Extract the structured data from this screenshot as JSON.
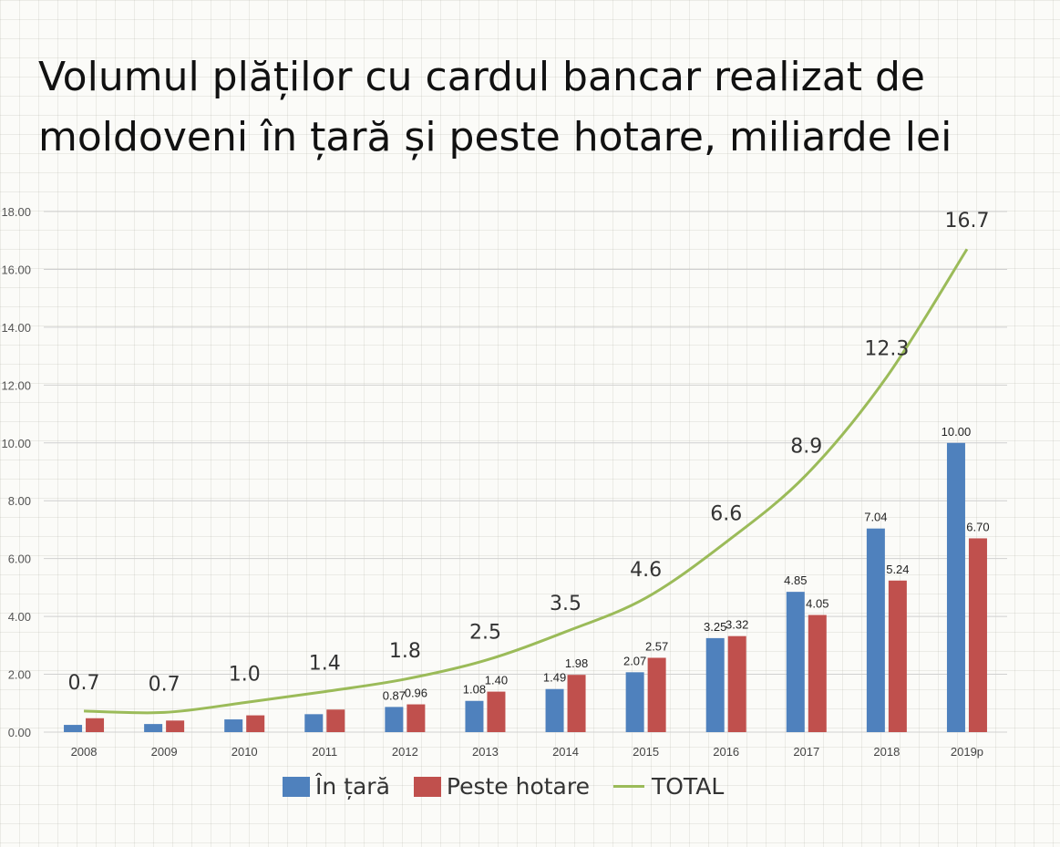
{
  "title": "Volumul plăților cu cardul bancar realizat de moldoveni în țară și peste hotare, miliarde lei",
  "chart_data": {
    "type": "bar",
    "categories": [
      "2008",
      "2009",
      "2010",
      "2011",
      "2012",
      "2013",
      "2014",
      "2015",
      "2016",
      "2017",
      "2018",
      "2019p"
    ],
    "series": [
      {
        "name": "În țară",
        "type": "bar",
        "color": "#4f81bd",
        "values": [
          0.25,
          0.28,
          0.44,
          0.62,
          0.87,
          1.08,
          1.49,
          2.07,
          3.25,
          4.85,
          7.04,
          10.0
        ],
        "labels": [
          "",
          "",
          "",
          "",
          "0.87",
          "1.08",
          "1.49",
          "2.07",
          "3.25",
          "4.85",
          "7.04",
          "10.00"
        ]
      },
      {
        "name": "Peste hotare",
        "type": "bar",
        "color": "#c0504d",
        "values": [
          0.48,
          0.4,
          0.58,
          0.78,
          0.96,
          1.4,
          1.98,
          2.57,
          3.32,
          4.05,
          5.24,
          6.7
        ],
        "labels": [
          "",
          "",
          "",
          "",
          "0.96",
          "1.40",
          "1.98",
          "2.57",
          "3.32",
          "4.05",
          "5.24",
          "6.70"
        ]
      },
      {
        "name": "TOTAL",
        "type": "line",
        "color": "#9bbb59",
        "values": [
          0.73,
          0.68,
          1.02,
          1.4,
          1.83,
          2.48,
          3.47,
          4.64,
          6.57,
          8.9,
          12.28,
          16.7
        ],
        "labels": [
          "0.7",
          "0.7",
          "1.0",
          "1.4",
          "1.8",
          "2.5",
          "3.5",
          "4.6",
          "6.6",
          "8.9",
          "12.3",
          "16.7"
        ]
      }
    ],
    "yticks": [
      "0.00",
      "2.00",
      "4.00",
      "6.00",
      "8.00",
      "10.00",
      "12.00",
      "14.00",
      "16.00",
      "18.00"
    ],
    "ylim": [
      0,
      18
    ],
    "xlabel": "",
    "ylabel": "",
    "grid": true,
    "legend": "bottom"
  }
}
